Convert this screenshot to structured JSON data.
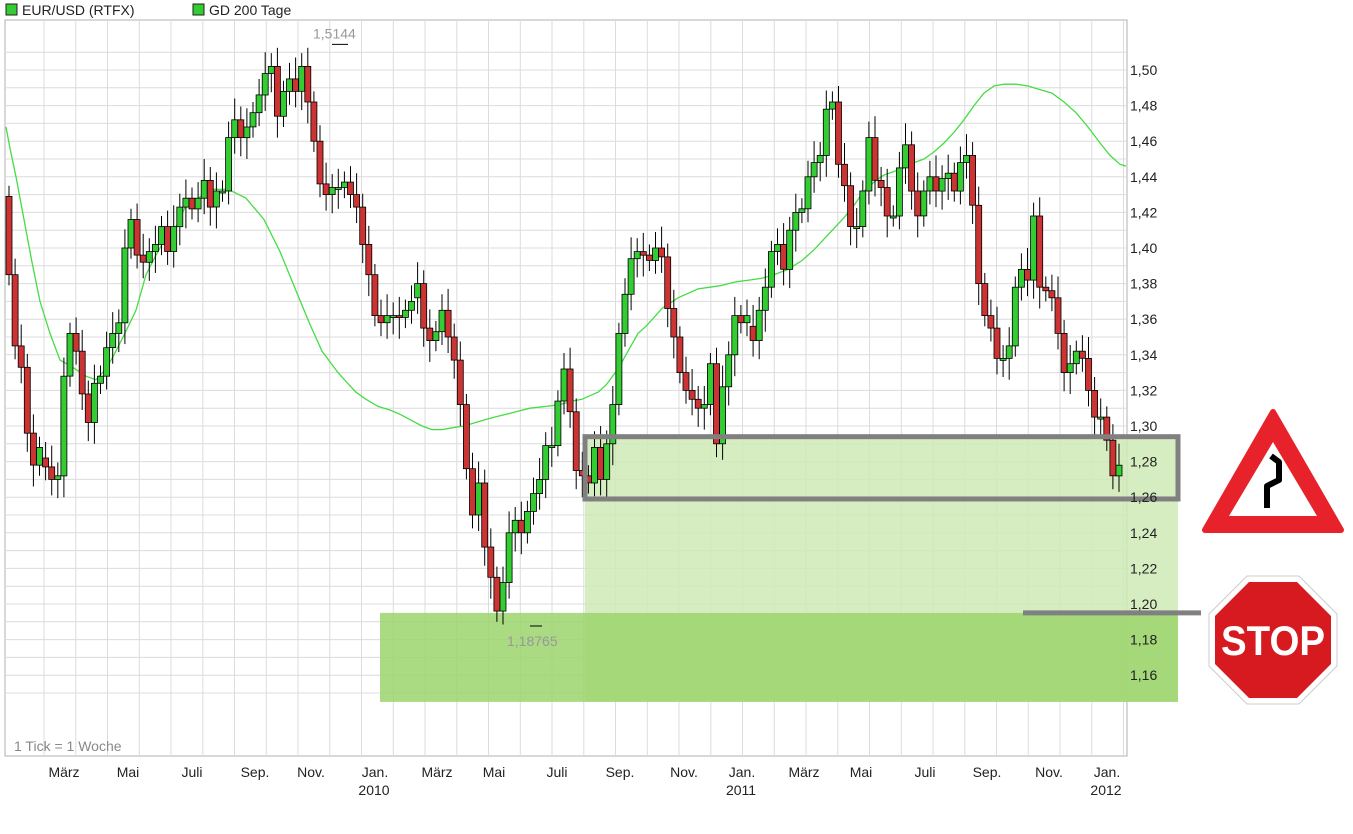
{
  "legend": [
    {
      "label": "EUR/USD (RTFX)",
      "color": "#33cc33"
    },
    {
      "label": "GD 200 Tage",
      "color": "#33cc33"
    }
  ],
  "note": "1 Tick = 1 Woche",
  "extremes": {
    "high_label": "1,5144",
    "low_label": "1,18765"
  },
  "signs": {
    "warning": "winding-road-warning-sign",
    "stop_text": "STOP"
  },
  "colors": {
    "up": "#33cc33",
    "down": "#cc3333",
    "ma": "#44dd44",
    "zone_light": "#cfeab6",
    "zone_dark": "#9bd46c",
    "frame": "#808080"
  },
  "chart_data": {
    "type": "candlestick",
    "title": "",
    "series_names": [
      "EUR/USD (RTFX)",
      "GD 200 Tage"
    ],
    "x_tick_labels": [
      "März",
      "Mai",
      "Juli",
      "Sep.",
      "Nov.",
      "Jan.",
      "März",
      "Mai",
      "Juli",
      "Sep.",
      "Nov.",
      "Jan.",
      "März",
      "Mai",
      "Juli",
      "Sep.",
      "Nov.",
      "Jan."
    ],
    "x_year_labels": [
      "2010",
      "2011",
      "2012"
    ],
    "y_tick_labels": [
      "1,50",
      "1,48",
      "1,46",
      "1,44",
      "1,42",
      "1,40",
      "1,38",
      "1,36",
      "1,34",
      "1,32",
      "1,30",
      "1,28",
      "1,26",
      "1,24",
      "1,22",
      "1,20",
      "1,18",
      "1,16"
    ],
    "y_ticks": [
      1.5,
      1.48,
      1.46,
      1.44,
      1.42,
      1.4,
      1.38,
      1.36,
      1.34,
      1.32,
      1.3,
      1.28,
      1.26,
      1.24,
      1.22,
      1.2,
      1.18,
      1.16
    ],
    "ylim": [
      1.145,
      1.525
    ],
    "xlabel": "",
    "ylabel": "",
    "grid": true,
    "candles": [
      [
        1.429,
        1.385
      ],
      [
        1.385,
        1.345
      ],
      [
        1.345,
        1.333
      ],
      [
        1.333,
        1.296
      ],
      [
        1.296,
        1.278
      ],
      [
        1.278,
        1.288
      ],
      [
        1.282,
        1.277
      ],
      [
        1.277,
        1.27
      ],
      [
        1.27,
        1.272
      ],
      [
        1.272,
        1.328
      ],
      [
        1.328,
        1.352
      ],
      [
        1.352,
        1.342
      ],
      [
        1.342,
        1.318
      ],
      [
        1.318,
        1.302
      ],
      [
        1.302,
        1.324
      ],
      [
        1.324,
        1.328
      ],
      [
        1.328,
        1.344
      ],
      [
        1.344,
        1.352
      ],
      [
        1.352,
        1.358
      ],
      [
        1.358,
        1.4
      ],
      [
        1.4,
        1.416
      ],
      [
        1.416,
        1.396
      ],
      [
        1.396,
        1.392
      ],
      [
        1.392,
        1.398
      ],
      [
        1.398,
        1.402
      ],
      [
        1.402,
        1.412
      ],
      [
        1.412,
        1.398
      ],
      [
        1.398,
        1.412
      ],
      [
        1.412,
        1.423
      ],
      [
        1.423,
        1.428
      ],
      [
        1.428,
        1.422
      ],
      [
        1.422,
        1.428
      ],
      [
        1.428,
        1.438
      ],
      [
        1.438,
        1.423
      ],
      [
        1.423,
        1.432
      ],
      [
        1.432,
        1.432
      ],
      [
        1.432,
        1.462
      ],
      [
        1.462,
        1.472
      ],
      [
        1.472,
        1.462
      ],
      [
        1.462,
        1.468
      ],
      [
        1.468,
        1.476
      ],
      [
        1.476,
        1.486
      ],
      [
        1.486,
        1.498
      ],
      [
        1.498,
        1.502
      ],
      [
        1.502,
        1.474
      ],
      [
        1.474,
        1.488
      ],
      [
        1.488,
        1.495
      ],
      [
        1.495,
        1.488
      ],
      [
        1.488,
        1.502
      ],
      [
        1.502,
        1.482
      ],
      [
        1.482,
        1.46
      ],
      [
        1.46,
        1.436
      ],
      [
        1.436,
        1.43
      ],
      [
        1.43,
        1.434
      ],
      [
        1.434,
        1.434
      ],
      [
        1.434,
        1.437
      ],
      [
        1.437,
        1.43
      ],
      [
        1.43,
        1.423
      ],
      [
        1.423,
        1.402
      ],
      [
        1.402,
        1.385
      ],
      [
        1.385,
        1.362
      ],
      [
        1.362,
        1.358
      ],
      [
        1.358,
        1.362
      ],
      [
        1.362,
        1.362
      ],
      [
        1.362,
        1.361
      ],
      [
        1.361,
        1.365
      ],
      [
        1.365,
        1.37
      ],
      [
        1.372,
        1.38
      ],
      [
        1.38,
        1.355
      ],
      [
        1.355,
        1.348
      ],
      [
        1.348,
        1.353
      ],
      [
        1.353,
        1.365
      ],
      [
        1.365,
        1.35
      ],
      [
        1.35,
        1.337
      ],
      [
        1.337,
        1.312
      ],
      [
        1.312,
        1.276
      ],
      [
        1.276,
        1.25
      ],
      [
        1.25,
        1.268
      ],
      [
        1.268,
        1.232
      ],
      [
        1.232,
        1.215
      ],
      [
        1.215,
        1.196
      ],
      [
        1.196,
        1.212
      ],
      [
        1.212,
        1.24
      ],
      [
        1.24,
        1.247
      ],
      [
        1.247,
        1.24
      ],
      [
        1.24,
        1.252
      ],
      [
        1.252,
        1.262
      ],
      [
        1.262,
        1.27
      ],
      [
        1.27,
        1.289
      ],
      [
        1.289,
        1.289
      ],
      [
        1.289,
        1.314
      ],
      [
        1.314,
        1.332
      ],
      [
        1.332,
        1.308
      ],
      [
        1.308,
        1.275
      ],
      [
        1.275,
        1.272
      ],
      [
        1.272,
        1.268
      ],
      [
        1.268,
        1.288
      ],
      [
        1.288,
        1.27
      ],
      [
        1.27,
        1.29
      ],
      [
        1.29,
        1.312
      ],
      [
        1.312,
        1.352
      ],
      [
        1.352,
        1.374
      ],
      [
        1.374,
        1.394
      ],
      [
        1.394,
        1.398
      ],
      [
        1.398,
        1.396
      ],
      [
        1.396,
        1.393
      ],
      [
        1.393,
        1.4
      ],
      [
        1.4,
        1.395
      ],
      [
        1.395,
        1.366
      ],
      [
        1.366,
        1.35
      ],
      [
        1.35,
        1.33
      ],
      [
        1.33,
        1.32
      ],
      [
        1.32,
        1.315
      ],
      [
        1.315,
        1.31
      ],
      [
        1.31,
        1.312
      ],
      [
        1.312,
        1.335
      ],
      [
        1.335,
        1.29
      ],
      [
        1.29,
        1.322
      ],
      [
        1.322,
        1.34
      ],
      [
        1.34,
        1.362
      ],
      [
        1.362,
        1.358
      ],
      [
        1.358,
        1.362
      ],
      [
        1.356,
        1.348
      ],
      [
        1.348,
        1.365
      ],
      [
        1.365,
        1.378
      ],
      [
        1.378,
        1.398
      ],
      [
        1.398,
        1.402
      ],
      [
        1.402,
        1.388
      ],
      [
        1.388,
        1.41
      ],
      [
        1.41,
        1.42
      ],
      [
        1.42,
        1.422
      ],
      [
        1.422,
        1.44
      ],
      [
        1.44,
        1.448
      ],
      [
        1.448,
        1.452
      ],
      [
        1.452,
        1.478
      ],
      [
        1.478,
        1.482
      ],
      [
        1.482,
        1.447
      ],
      [
        1.447,
        1.435
      ],
      [
        1.435,
        1.412
      ],
      [
        1.412,
        1.412
      ],
      [
        1.412,
        1.432
      ],
      [
        1.432,
        1.462
      ],
      [
        1.462,
        1.438
      ],
      [
        1.438,
        1.434
      ],
      [
        1.434,
        1.418
      ],
      [
        1.418,
        1.418
      ],
      [
        1.418,
        1.445
      ],
      [
        1.445,
        1.458
      ],
      [
        1.458,
        1.432
      ],
      [
        1.432,
        1.418
      ],
      [
        1.418,
        1.432
      ],
      [
        1.432,
        1.44
      ],
      [
        1.44,
        1.432
      ],
      [
        1.432,
        1.439
      ],
      [
        1.439,
        1.442
      ],
      [
        1.442,
        1.432
      ],
      [
        1.432,
        1.448
      ],
      [
        1.448,
        1.452
      ],
      [
        1.452,
        1.424
      ],
      [
        1.424,
        1.38
      ],
      [
        1.38,
        1.362
      ],
      [
        1.362,
        1.355
      ],
      [
        1.355,
        1.338
      ],
      [
        1.338,
        1.338
      ],
      [
        1.338,
        1.345
      ],
      [
        1.345,
        1.378
      ],
      [
        1.378,
        1.388
      ],
      [
        1.388,
        1.382
      ],
      [
        1.382,
        1.418
      ],
      [
        1.418,
        1.378
      ],
      [
        1.378,
        1.376
      ],
      [
        1.376,
        1.372
      ],
      [
        1.372,
        1.352
      ],
      [
        1.352,
        1.33
      ],
      [
        1.33,
        1.335
      ],
      [
        1.335,
        1.342
      ],
      [
        1.342,
        1.338
      ],
      [
        1.338,
        1.32
      ],
      [
        1.32,
        1.305
      ],
      [
        1.305,
        1.305
      ],
      [
        1.305,
        1.292
      ],
      [
        1.292,
        1.272
      ],
      [
        1.272,
        1.278
      ]
    ],
    "moving_average": [
      [
        0,
        1.468
      ],
      [
        4,
        1.456
      ],
      [
        10,
        1.44
      ],
      [
        18,
        1.416
      ],
      [
        26,
        1.392
      ],
      [
        34,
        1.37
      ],
      [
        44,
        1.352
      ],
      [
        54,
        1.337
      ],
      [
        64,
        1.334
      ],
      [
        72,
        1.331
      ],
      [
        80,
        1.328
      ],
      [
        90,
        1.326
      ],
      [
        100,
        1.332
      ],
      [
        108,
        1.34
      ],
      [
        118,
        1.351
      ],
      [
        130,
        1.365
      ],
      [
        140,
        1.385
      ],
      [
        150,
        1.396
      ],
      [
        160,
        1.406
      ],
      [
        170,
        1.412
      ],
      [
        180,
        1.424
      ],
      [
        192,
        1.428
      ],
      [
        206,
        1.433
      ],
      [
        222,
        1.433
      ],
      [
        240,
        1.428
      ],
      [
        258,
        1.416
      ],
      [
        274,
        1.398
      ],
      [
        290,
        1.376
      ],
      [
        304,
        1.357
      ],
      [
        316,
        1.342
      ],
      [
        324,
        1.336
      ],
      [
        332,
        1.33
      ],
      [
        340,
        1.325
      ],
      [
        350,
        1.319
      ],
      [
        360,
        1.315
      ],
      [
        372,
        1.311
      ],
      [
        384,
        1.309
      ],
      [
        396,
        1.306
      ],
      [
        406,
        1.303
      ],
      [
        416,
        1.3
      ],
      [
        426,
        1.298
      ],
      [
        436,
        1.298
      ],
      [
        446,
        1.299
      ],
      [
        458,
        1.3
      ],
      [
        470,
        1.302
      ],
      [
        482,
        1.304
      ],
      [
        496,
        1.306
      ],
      [
        510,
        1.308
      ],
      [
        524,
        1.31
      ],
      [
        540,
        1.311
      ],
      [
        554,
        1.312
      ],
      [
        566,
        1.314
      ],
      [
        576,
        1.315
      ],
      [
        584,
        1.317
      ],
      [
        592,
        1.319
      ],
      [
        600,
        1.323
      ],
      [
        612,
        1.332
      ],
      [
        622,
        1.342
      ],
      [
        632,
        1.352
      ],
      [
        640,
        1.356
      ],
      [
        648,
        1.361
      ],
      [
        656,
        1.366
      ],
      [
        664,
        1.369
      ],
      [
        672,
        1.372
      ],
      [
        680,
        1.374
      ],
      [
        692,
        1.377
      ],
      [
        704,
        1.378
      ],
      [
        716,
        1.379
      ],
      [
        730,
        1.381
      ],
      [
        744,
        1.382
      ],
      [
        756,
        1.383
      ],
      [
        768,
        1.385
      ],
      [
        782,
        1.388
      ],
      [
        796,
        1.393
      ],
      [
        808,
        1.399
      ],
      [
        818,
        1.405
      ],
      [
        828,
        1.411
      ],
      [
        838,
        1.417
      ],
      [
        848,
        1.424
      ],
      [
        858,
        1.432
      ],
      [
        868,
        1.437
      ],
      [
        878,
        1.441
      ],
      [
        888,
        1.443
      ],
      [
        898,
        1.445
      ],
      [
        908,
        1.448
      ],
      [
        918,
        1.45
      ],
      [
        928,
        1.454
      ],
      [
        938,
        1.459
      ],
      [
        948,
        1.465
      ],
      [
        958,
        1.472
      ],
      [
        968,
        1.48
      ],
      [
        978,
        1.487
      ],
      [
        988,
        1.491
      ],
      [
        998,
        1.492
      ],
      [
        1010,
        1.492
      ],
      [
        1022,
        1.491
      ],
      [
        1034,
        1.489
      ],
      [
        1046,
        1.487
      ],
      [
        1058,
        1.482
      ],
      [
        1070,
        1.476
      ],
      [
        1082,
        1.468
      ],
      [
        1094,
        1.459
      ],
      [
        1104,
        1.452
      ],
      [
        1114,
        1.447
      ],
      [
        1120,
        1.446
      ]
    ],
    "low_marker_value": 1.18765,
    "high_marker_value": 1.5144,
    "zones": [
      {
        "kind": "support-band",
        "low": 1.259,
        "high": 1.294,
        "framed": true
      },
      {
        "kind": "support-area",
        "low": 1.145,
        "high": 1.294
      },
      {
        "kind": "stop-area",
        "low": 1.145,
        "high": 1.195
      }
    ],
    "stop_line_value": 1.195
  }
}
